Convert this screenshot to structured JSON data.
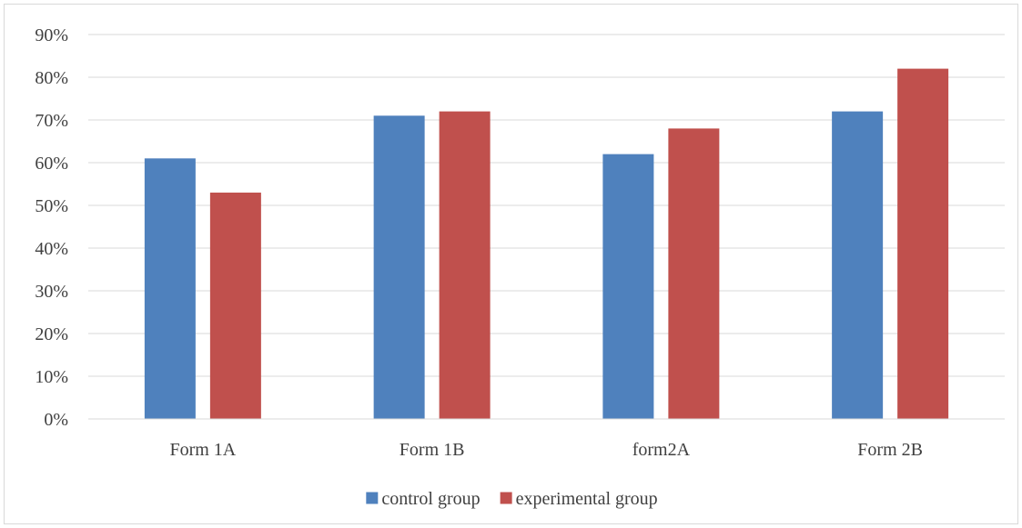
{
  "chart_data": {
    "type": "bar",
    "categories": [
      "Form 1A",
      "Form 1B",
      "form2A",
      "Form 2B"
    ],
    "series": [
      {
        "name": "control group",
        "color": "#4f81bd",
        "values": [
          61,
          71,
          62,
          72
        ]
      },
      {
        "name": "experimental group",
        "color": "#c0504d",
        "values": [
          53,
          72,
          68,
          82
        ]
      }
    ],
    "yunit": "%",
    "ylim": [
      0,
      90
    ],
    "yticks": [
      0,
      10,
      20,
      30,
      40,
      50,
      60,
      70,
      80,
      90
    ],
    "grid": true,
    "legend_position": "bottom",
    "gridline_color": "#d9d9d9",
    "axis_color": "#d9d9d9"
  }
}
